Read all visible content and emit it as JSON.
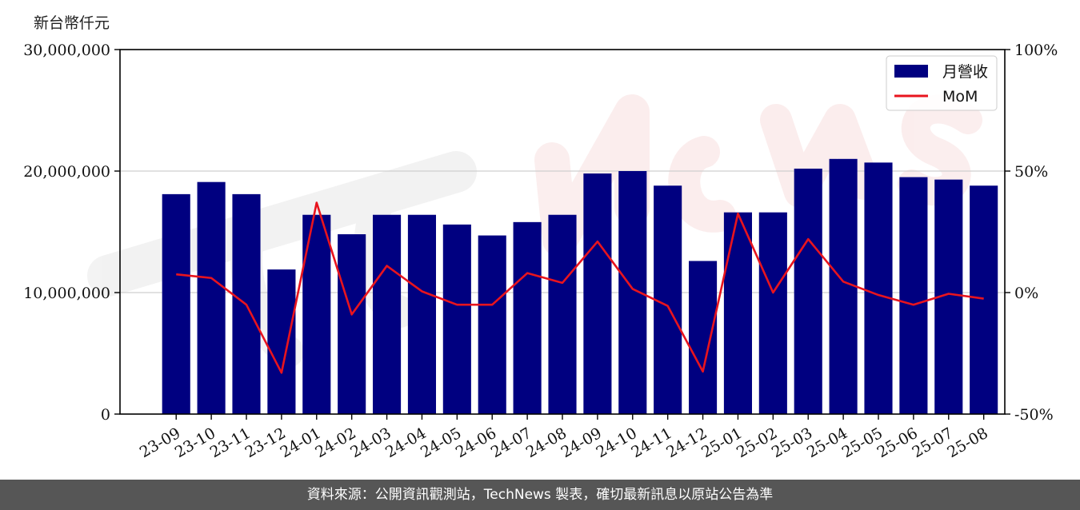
{
  "chart_data": {
    "type": "bar",
    "ylabel": "新台幣仟元",
    "categories": [
      "23-09",
      "23-10",
      "23-11",
      "23-12",
      "24-01",
      "24-02",
      "24-03",
      "24-04",
      "24-05",
      "24-06",
      "24-07",
      "24-08",
      "24-09",
      "24-10",
      "24-11",
      "24-12",
      "25-01",
      "25-02",
      "25-03",
      "25-04",
      "25-05",
      "25-06",
      "25-07",
      "25-08"
    ],
    "series": [
      {
        "name": "月營收",
        "type": "bar",
        "axis": "left",
        "color": "#000080",
        "values": [
          18100000,
          19100000,
          18100000,
          11900000,
          16400000,
          14800000,
          16400000,
          16400000,
          15600000,
          14700000,
          15800000,
          16400000,
          19800000,
          20000000,
          18800000,
          12600000,
          16600000,
          16600000,
          20200000,
          21000000,
          20700000,
          19500000,
          19300000,
          18800000
        ]
      },
      {
        "name": "MoM",
        "type": "line",
        "axis": "right",
        "color": "#e8141e",
        "values": [
          7.5,
          6,
          -5,
          -33,
          37,
          -9,
          11,
          0.5,
          -5,
          -5,
          8,
          4,
          21,
          1.5,
          -5.5,
          -32.5,
          32.5,
          0,
          22,
          4.5,
          -1,
          -5,
          -0.5,
          -2.5
        ]
      }
    ],
    "ylim": [
      0,
      30000000
    ],
    "yticks": [
      "0",
      "10,000,000",
      "20,000,000",
      "30,000,000"
    ],
    "y2lim": [
      -50,
      100
    ],
    "y2ticks": [
      "-50%",
      "0%",
      "50%",
      "100%"
    ],
    "grid": "horizontal",
    "legend": "top-right",
    "watermark": "TechNews"
  },
  "footer": "資料來源：公開資訊觀測站，TechNews 製表，確切最新訊息以原站公告為準"
}
